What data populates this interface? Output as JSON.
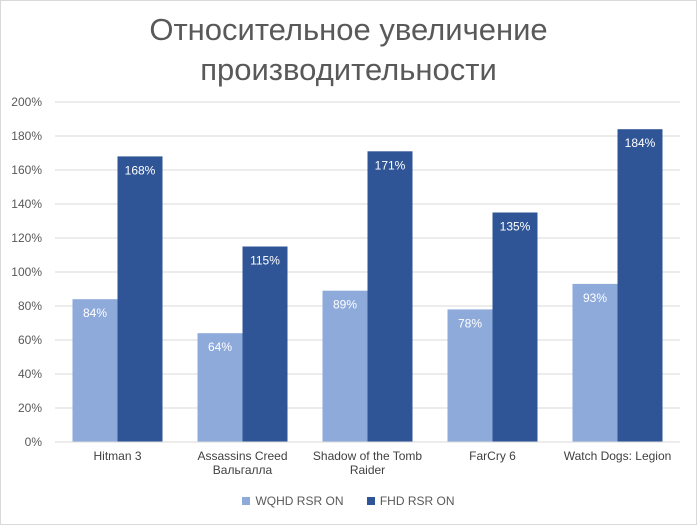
{
  "chart_data": {
    "type": "bar",
    "title": "Относительное увеличение\nпроизводительности",
    "categories": [
      "Hitman 3",
      "Assassins Creed\nВальгалла",
      "Shadow of the Tomb\nRaider",
      "FarCry 6",
      "Watch Dogs: Legion"
    ],
    "series": [
      {
        "name": "WQHD RSR ON",
        "values": [
          84,
          64,
          89,
          78,
          93
        ],
        "labels": [
          "84%",
          "64%",
          "89%",
          "78%",
          "93%"
        ],
        "color": "#8eaadb"
      },
      {
        "name": "FHD RSR ON",
        "values": [
          168,
          115,
          171,
          135,
          184
        ],
        "labels": [
          "168%",
          "115%",
          "171%",
          "135%",
          "184%"
        ],
        "color": "#2f5597"
      }
    ],
    "ylim": [
      0,
      200
    ],
    "yticks": [
      "0%",
      "20%",
      "40%",
      "60%",
      "80%",
      "100%",
      "120%",
      "140%",
      "160%",
      "180%",
      "200%"
    ],
    "grid": true,
    "legend_position": "bottom",
    "gridline_color": "#d9d9d9"
  }
}
